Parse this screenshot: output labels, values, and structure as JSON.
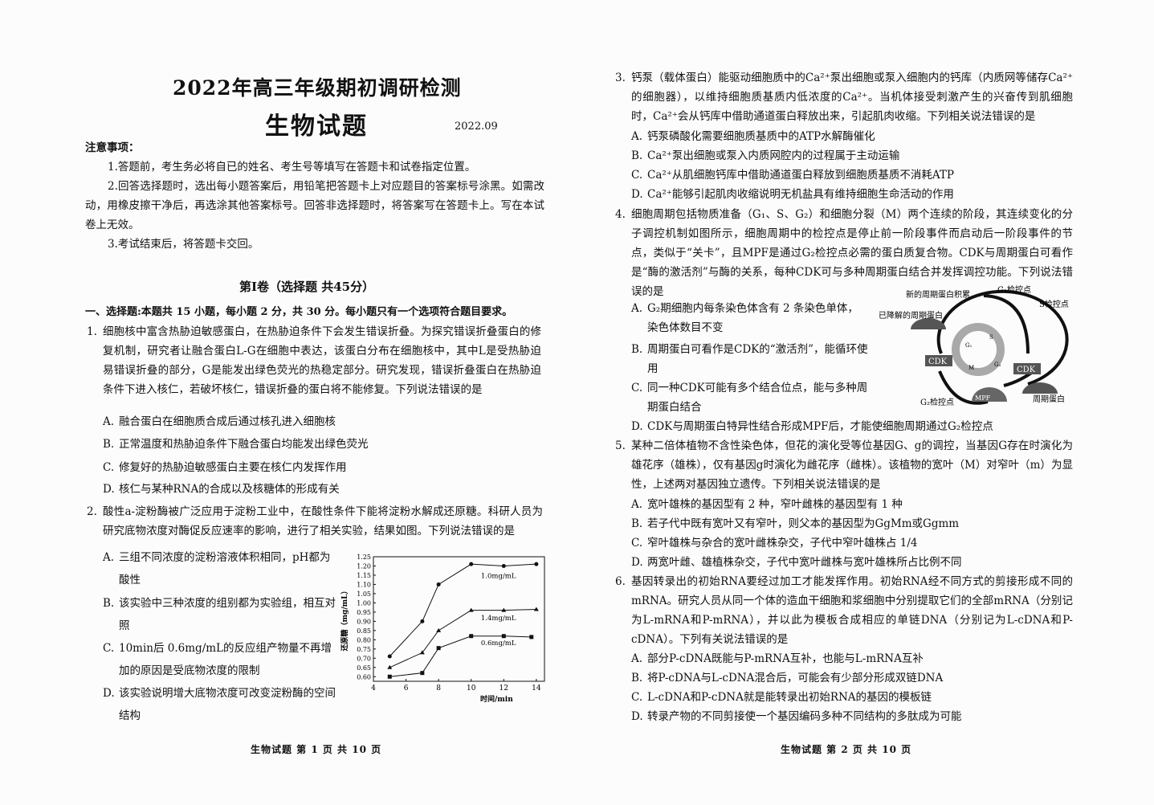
{
  "page1": {
    "title": "2022年高三年级期初调研检测",
    "subject": "生物试题",
    "date": "2022.09",
    "notice_heading": "注意事项：",
    "notices": [
      "1.答题前，考生务必将自已的姓名、考生号等填写在答题卡和试卷指定位置。",
      "2.回答选择题时，选出每小题答案后，用铅笔把答题卡上对应题目的答案标号涂黑。如需改动，用橡皮擦干净后，再选涂其他答案标号。回答非选择题时，将答案写在答题卡上。写在本试卷上无效。",
      "3.考试结束后，将答题卡交回。"
    ],
    "section_title": "第Ⅰ卷（选择题 共45分）",
    "section_intro": "一、选择题:本题共 15 小题，每小题 2 分，共 30 分。每小题只有一个选项符合题目要求。",
    "q1": {
      "num": "1.",
      "stem": "细胞核中富含热胁迫敏感蛋白，在热胁迫条件下会发生错误折叠。为探究错误折叠蛋白的修复机制，研究者让融合蛋白L-G在细胞中表达，该蛋白分布在细胞核中，其中L是受热胁迫易错误折叠的部分，G是能发出绿色荧光的热稳定部分。研究发现，错误折叠蛋白在热胁迫条件下进入核仁，若破坏核仁，错误折叠的蛋白将不能修复。下列说法错误的是",
      "options": [
        {
          "l": "A.",
          "t": "融合蛋白在细胞质合成后通过核孔进入细胞核"
        },
        {
          "l": "B.",
          "t": "正常温度和热胁迫条件下融合蛋白均能发出绿色荧光"
        },
        {
          "l": "C.",
          "t": "修复好的热胁迫敏感蛋白主要在核仁内发挥作用"
        },
        {
          "l": "D.",
          "t": "核仁与某种RNA的合成以及核糖体的形成有关"
        }
      ]
    },
    "q2": {
      "num": "2.",
      "stem": "酸性a-淀粉酶被广泛应用于淀粉工业中，在酸性条件下能将淀粉水解成还原糖。科研人员为研究底物浓度对酶促反应速率的影响，进行了相关实验，结果如图。下列说法错误的是",
      "options": [
        {
          "l": "A.",
          "t": "三组不同浓度的淀粉溶液体积相同，pH都为酸性"
        },
        {
          "l": "B.",
          "t": "该实验中三种浓度的组别都为实验组，相互对照"
        },
        {
          "l": "C.",
          "t": "10min后 0.6mg/mL的反应组产物量不再增加的原因是受底物浓度的限制"
        },
        {
          "l": "D.",
          "t": "该实验说明增大底物浓度可改变淀粉酶的空间结构"
        }
      ]
    },
    "footer": "生物试题 第 1 页 共 10 页"
  },
  "chart_data": {
    "type": "line",
    "xlabel": "时间/min",
    "ylabel": "还原糖（mg/mL）",
    "xlim": [
      4,
      14.5
    ],
    "ylim": [
      0.575,
      1.25
    ],
    "xticks": [
      "4",
      "6",
      "8",
      "10",
      "12",
      "14"
    ],
    "yticks": [
      "0.60",
      "0.65",
      "0.70",
      "0.75",
      "0.80",
      "0.85",
      "0.90",
      "0.95",
      "1.00",
      "1.05",
      "1.10",
      "1.15",
      "1.20",
      "1.25"
    ],
    "grid": false,
    "series": [
      {
        "name": "1.0mg/mL",
        "marker": "circle",
        "x": [
          5,
          7,
          8,
          10,
          12,
          14
        ],
        "y": [
          0.71,
          0.9,
          1.1,
          1.21,
          1.2,
          1.21
        ]
      },
      {
        "name": "1.4mg/mL",
        "marker": "triangle",
        "x": [
          5,
          7,
          8,
          10,
          12,
          14
        ],
        "y": [
          0.65,
          0.73,
          0.85,
          0.96,
          0.96,
          0.965
        ]
      },
      {
        "name": "0.6mg/mL",
        "marker": "square",
        "x": [
          5,
          7,
          8,
          10,
          12,
          13.7
        ],
        "y": [
          0.6,
          0.62,
          0.755,
          0.82,
          0.82,
          0.815
        ]
      }
    ]
  },
  "page2": {
    "q3": {
      "num": "3.",
      "stem": "钙泵（载体蛋白）能驱动细胞质中的Ca²⁺泵出细胞或泵入细胞内的钙库（内质网等储存Ca²⁺的细胞器），以维持细胞质基质内低浓度的Ca²⁺。当机体接受刺激产生的兴奋传到肌细胞时，Ca²⁺会从钙库中借助通道蛋白释放出来，引起肌肉收缩。下列相关说法错误的是",
      "options": [
        {
          "l": "A.",
          "t": "钙泵磷酸化需要细胞质基质中的ATP水解酶催化"
        },
        {
          "l": "B.",
          "t": "Ca²⁺泵出细胞或泵入内质网腔内的过程属于主动运输"
        },
        {
          "l": "C.",
          "t": "Ca²⁺从肌细胞钙库中借助通道蛋白释放到细胞质基质不消耗ATP"
        },
        {
          "l": "D.",
          "t": "Ca²⁺能够引起肌肉收缩说明无机盐具有维持细胞生命活动的作用"
        }
      ]
    },
    "q4": {
      "num": "4.",
      "stem": "细胞周期包括物质准备（G₁、S、G₂）和细胞分裂（M）两个连续的阶段，其连续变化的分子调控机制如图所示，细胞周期中的检控点是停止前一阶段事件而启动后一阶段事件的节点，类似于“关卡”，且MPF是通过G₂检控点必需的蛋白质复合物。CDK与周期蛋白可看作是“酶的激活剂”与酶的关系，每种CDK可与多种周期蛋白结合并发挥调控功能。下列说法错误的是",
      "options": [
        {
          "l": "A.",
          "t": "G₂期细胞内每条染色体含有 2 条染色单体，染色体数目不变"
        },
        {
          "l": "B.",
          "t": "周期蛋白可看作是CDK的“激活剂”，能循环使用"
        },
        {
          "l": "C.",
          "t": "同一种CDK可能有多个结合位点，能与多种周期蛋白结合"
        },
        {
          "l": "D.",
          "t": "CDK与周期蛋白特异性结合形成MPF后，才能使细胞周期通过G₂检控点"
        }
      ],
      "diagram": {
        "new_cyclin": "新的周期蛋白积累",
        "degraded": "已降解的周期蛋白",
        "g1_check": "G₁检控点",
        "s_check": "S检控点",
        "g2_check": "G₂检控点",
        "cyclin": "周期蛋白",
        "cdk": "CDK",
        "mpf": "MPF",
        "g1": "G₁",
        "s": "S",
        "g2": "G₂",
        "m": "M"
      }
    },
    "q5": {
      "num": "5.",
      "stem": "某种二倍体植物不含性染色体，但花的演化受等位基因G、g的调控，当基因G存在时演化为雄花序（雄株），仅有基因g时演化为雌花序（雌株）。该植物的宽叶（M）对窄叶（m）为显性，上述两对基因独立遗传。下列相关说法错误的是",
      "options": [
        {
          "l": "A.",
          "t": "宽叶雄株的基因型有 2 种，窄叶雌株的基因型有 1 种"
        },
        {
          "l": "B.",
          "t": "若子代中既有宽叶又有窄叶，则父本的基因型为GgMm或Ggmm"
        },
        {
          "l": "C.",
          "t": "窄叶雄株与杂合的宽叶雌株杂交，子代中窄叶雄株占 1/4"
        },
        {
          "l": "D.",
          "t": "两宽叶雌、雄植株杂交，子代中宽叶雌株与宽叶雄株所占比例不同"
        }
      ]
    },
    "q6": {
      "num": "6.",
      "stem": "基因转录出的初始RNA要经过加工才能发挥作用。初始RNA经不同方式的剪接形成不同的mRNA。研究人员从同一个体的造血干细胞和浆细胞中分别提取它们的全部mRNA（分别记为L-mRNA和P-mRNA），并以此为模板合成相应的单链DNA（分别记为L-cDNA和P-cDNA）。下列有关说法错误的是",
      "options": [
        {
          "l": "A.",
          "t": "部分P-cDNA既能与P-mRNA互补，也能与L-mRNA互补"
        },
        {
          "l": "B.",
          "t": "将P-cDNA与L-cDNA混合后，可能会有少部分形成双链DNA"
        },
        {
          "l": "C.",
          "t": "L-cDNA和P-cDNA就是能转录出初始RNA的基因的模板链"
        },
        {
          "l": "D.",
          "t": "转录产物的不同剪接使一个基因编码多种不同结构的多肽成为可能"
        }
      ]
    },
    "footer": "生物试题 第 2 页 共 10 页"
  }
}
